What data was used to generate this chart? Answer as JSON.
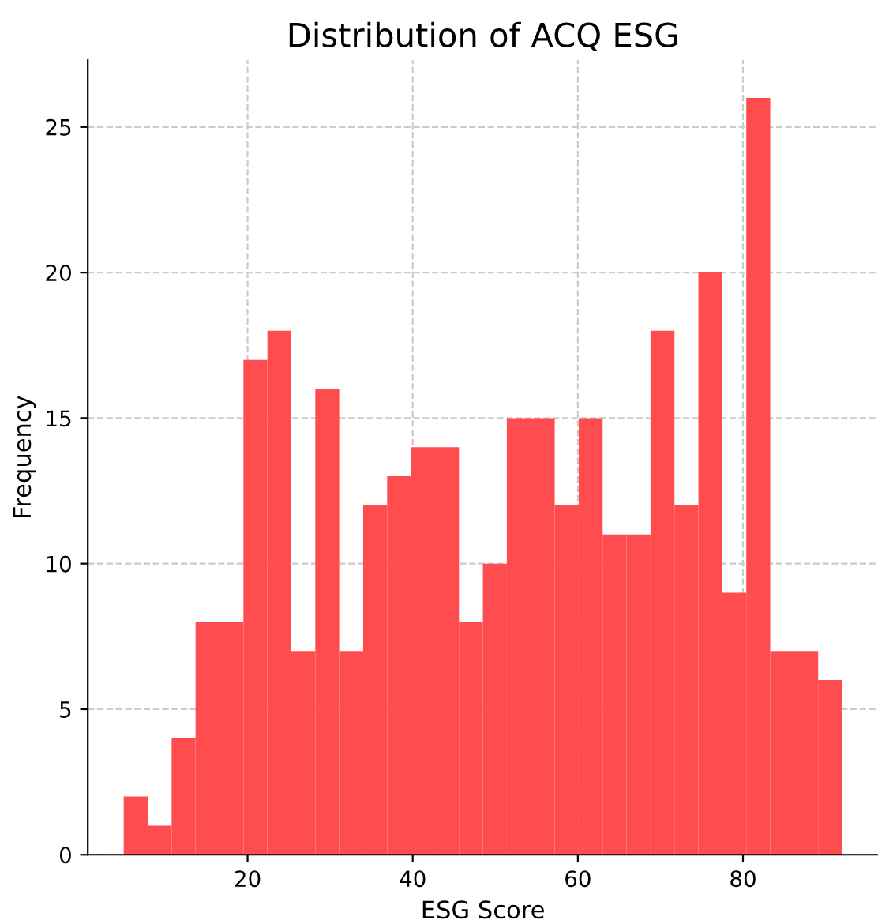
{
  "chart_data": {
    "type": "histogram",
    "title": "Distribution of ACQ ESG",
    "xlabel": "ESG Score",
    "ylabel": "Frequency",
    "bins": [
      5.0,
      7.9,
      10.8,
      13.7,
      16.6,
      19.5,
      22.4,
      25.3,
      28.2,
      31.1,
      34.0,
      36.9,
      39.8,
      42.7,
      45.6,
      48.5,
      51.4,
      54.3,
      57.2,
      60.1,
      63.0,
      65.9,
      68.8,
      71.7,
      74.6,
      77.5,
      80.4,
      83.3,
      86.2,
      89.1,
      92.0
    ],
    "values": [
      2,
      1,
      4,
      8,
      8,
      17,
      18,
      7,
      16,
      7,
      12,
      13,
      14,
      14,
      8,
      10,
      15,
      15,
      12,
      15,
      11,
      11,
      18,
      12,
      20,
      9,
      26,
      7,
      7,
      6
    ],
    "color": "#ff4c4f",
    "xlim": [
      0.65,
      96.35
    ],
    "ylim": [
      0,
      27.3
    ],
    "xticks": [
      20,
      40,
      60,
      80
    ],
    "yticks": [
      0,
      5,
      10,
      15,
      20,
      25
    ],
    "grid": true
  }
}
